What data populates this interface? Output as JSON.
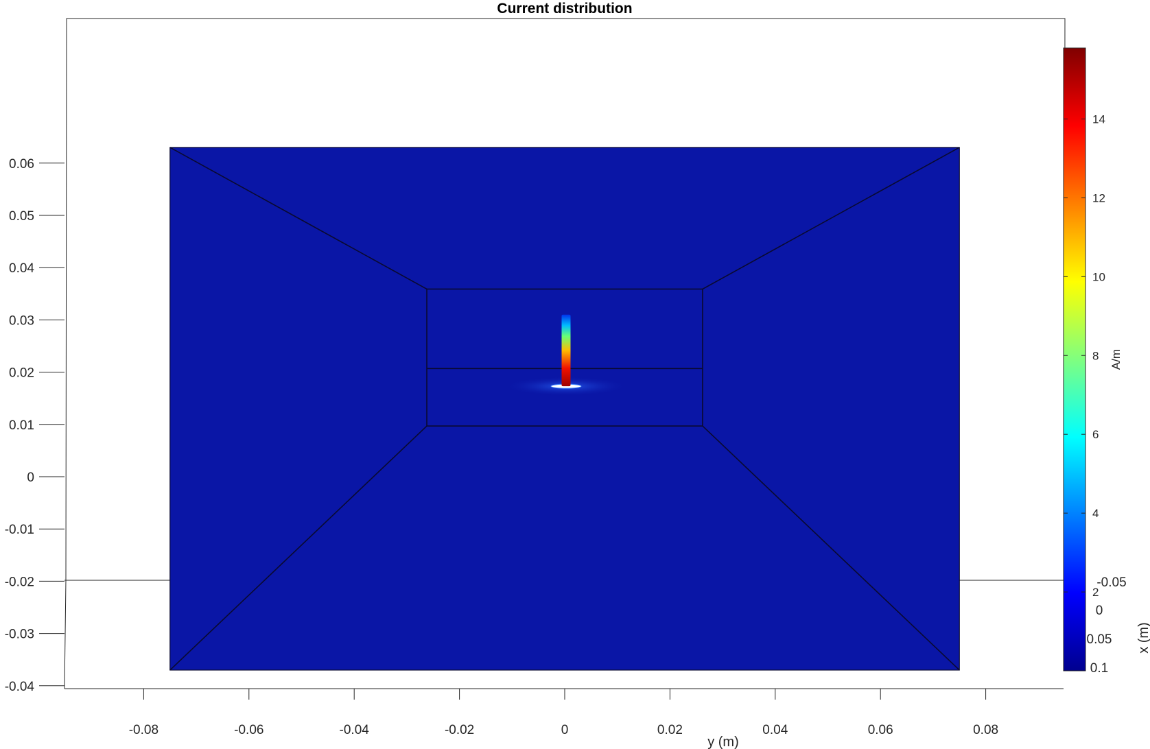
{
  "chart_data": {
    "type": "heatmap",
    "title": "Current distribution",
    "xlabel": "y (m)",
    "ylabel": "",
    "zlabel": "x (m)",
    "colorbar_label": "A/m",
    "colormap": "jet",
    "xlim": [
      -0.095,
      0.095
    ],
    "ylim": [
      -0.04,
      0.07
    ],
    "x_ticks": [
      -0.08,
      -0.06,
      -0.04,
      -0.02,
      0,
      0.02,
      0.04,
      0.06,
      0.08
    ],
    "x_tick_labels": [
      "-0.08",
      "-0.06",
      "-0.04",
      "-0.02",
      "0",
      "0.02",
      "0.04",
      "0.06",
      "0.08"
    ],
    "y_ticks": [
      0.06,
      0.05,
      0.04,
      0.03,
      0.02,
      0.01,
      0,
      -0.01,
      -0.02,
      -0.03,
      -0.04
    ],
    "y_tick_labels": [
      "0.06",
      "0.05",
      "0.04",
      "0.03",
      "0.02",
      "0.01",
      "0",
      "-0.01",
      "-0.02",
      "-0.03",
      "-0.04"
    ],
    "z_tick_labels": [
      "-0.05",
      "0",
      "0.05",
      "0.1"
    ],
    "colorbar_range": [
      0,
      15.8
    ],
    "colorbar_ticks": [
      2,
      4,
      6,
      8,
      10,
      12,
      14
    ],
    "colorbar_tick_labels": [
      "2",
      "4",
      "6",
      "8",
      "10",
      "12",
      "14"
    ],
    "ground_plane": {
      "y_min": -0.075,
      "y_max": 0.075,
      "x_min": -0.037,
      "x_max": 0.063,
      "current": 0.3
    },
    "patch": {
      "y_min": -0.0262,
      "y_max": 0.0262,
      "x_min": 0.0097,
      "x_max": 0.0359
    },
    "feed": {
      "y": 0,
      "x_bottom": 0.0173,
      "x_top": 0.031,
      "current_min": 4,
      "current_max": 15.8
    }
  }
}
